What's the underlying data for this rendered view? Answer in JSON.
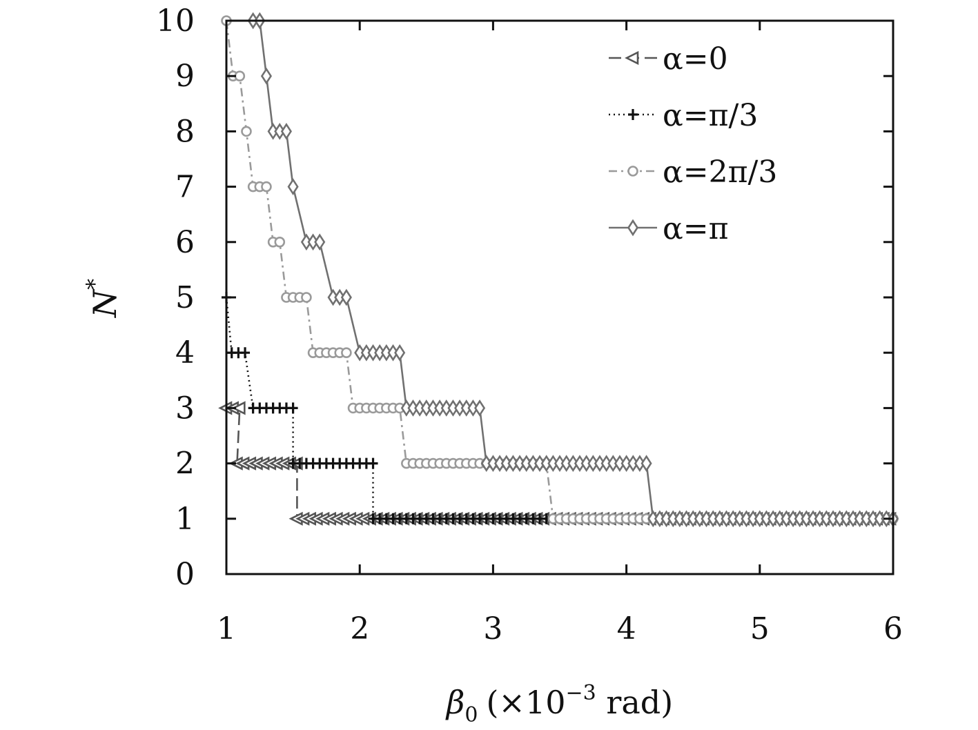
{
  "chart_data": {
    "type": "line",
    "xlabel": {
      "main": "β",
      "sub": "0",
      "pre": "(×10",
      "exp": "−3",
      "post": " rad)"
    },
    "ylabel": {
      "main": "N",
      "sup": "*"
    },
    "xlim": [
      1,
      6
    ],
    "ylim": [
      0,
      10
    ],
    "xticks": [
      "1",
      "2",
      "3",
      "4",
      "5",
      "6"
    ],
    "yticks": [
      "0",
      "1",
      "2",
      "3",
      "4",
      "5",
      "6",
      "7",
      "8",
      "9",
      "10"
    ],
    "grid": false,
    "legend_position": "top-right",
    "series": [
      {
        "name": "α=0",
        "color": "#555555",
        "dash": "18,8",
        "marker": "triangle-left",
        "steps": [
          [
            1.0,
            1.08,
            3
          ],
          [
            1.08,
            1.53,
            2
          ],
          [
            1.53,
            6.0,
            1
          ]
        ],
        "step": 0.05
      },
      {
        "name": "α=π/3",
        "color": "#111111",
        "dash": "2,5",
        "marker": "plus",
        "start": [
          1.0,
          5
        ],
        "steps": [
          [
            1.04,
            1.16,
            4
          ],
          [
            1.2,
            1.48,
            3
          ],
          [
            1.5,
            2.08,
            2
          ],
          [
            2.1,
            6.0,
            1
          ]
        ],
        "step": 0.05
      },
      {
        "name": "α=2π/3",
        "color": "#9a9a9a",
        "dash": "12,6,3,6",
        "marker": "circle",
        "steps": [
          [
            1.0,
            1.0,
            10
          ],
          [
            1.05,
            1.1,
            9
          ],
          [
            1.15,
            1.15,
            8
          ],
          [
            1.2,
            1.3,
            7
          ],
          [
            1.35,
            1.4,
            6
          ],
          [
            1.45,
            1.6,
            5
          ],
          [
            1.65,
            1.9,
            4
          ],
          [
            1.95,
            2.3,
            3
          ],
          [
            2.35,
            3.4,
            2
          ],
          [
            3.45,
            6.0,
            1
          ]
        ],
        "step": 0.05
      },
      {
        "name": "α=π",
        "color": "#707070",
        "dash": "",
        "marker": "diamond",
        "steps": [
          [
            1.2,
            1.25,
            10
          ],
          [
            1.3,
            1.3,
            9
          ],
          [
            1.35,
            1.45,
            8
          ],
          [
            1.5,
            1.5,
            7
          ],
          [
            1.6,
            1.7,
            6
          ],
          [
            1.8,
            1.9,
            5
          ],
          [
            2.0,
            2.3,
            4
          ],
          [
            2.35,
            2.9,
            3
          ],
          [
            2.95,
            4.15,
            2
          ],
          [
            4.2,
            6.0,
            1
          ]
        ],
        "step": 0.05
      }
    ]
  }
}
